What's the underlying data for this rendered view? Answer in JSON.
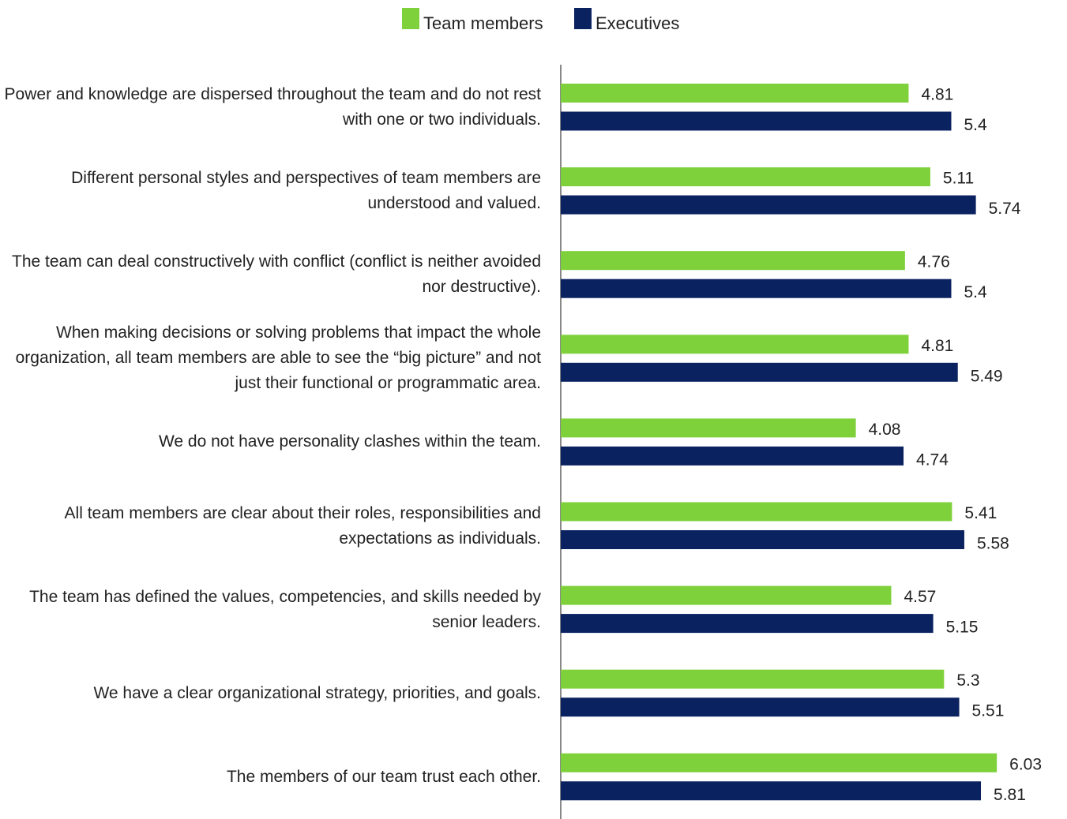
{
  "chart_data": {
    "type": "bar",
    "orientation": "horizontal",
    "categories": [
      "Power and knowledge are dispersed throughout the team and do not rest with one or two individuals.",
      "Different personal styles and perspectives of team members are understood and valued.",
      "The team can deal constructively with conflict (conflict is neither avoided nor destructive).",
      "When making decisions or solving problems that impact the whole organization, all team members are able to see the “big picture” and not just their functional or programmatic area.",
      "We do not have personality clashes within the team.",
      "All team members are clear about their roles, responsibilities and expectations as individuals.",
      "The team has defined the values, competencies, and skills needed by senior leaders.",
      "We have a clear organizational strategy, priorities, and goals.",
      "The members of our team trust each other."
    ],
    "series": [
      {
        "name": "Team members",
        "color": "#7fd13b",
        "values": [
          4.81,
          5.11,
          4.76,
          4.81,
          4.08,
          5.41,
          4.57,
          5.3,
          6.03
        ]
      },
      {
        "name": "Executives",
        "color": "#0b2260",
        "values": [
          5.4,
          5.74,
          5.4,
          5.49,
          4.74,
          5.58,
          5.15,
          5.51,
          5.81
        ]
      }
    ],
    "xlim": [
      0,
      7
    ],
    "legend": "top"
  }
}
